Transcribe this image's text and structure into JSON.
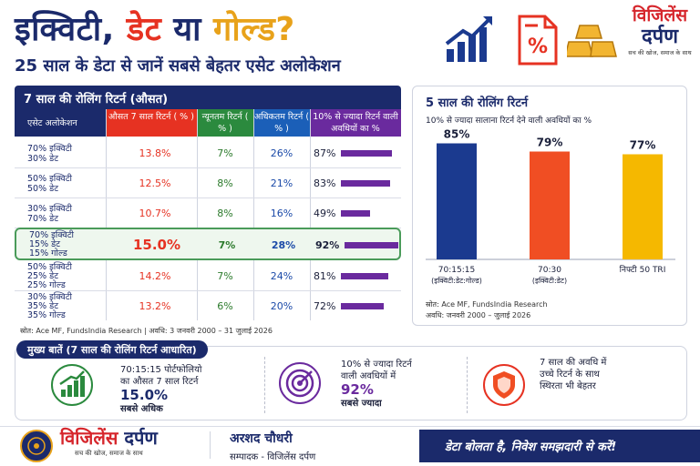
{
  "header": {
    "title_part1": "इक्विटी,",
    "title_part2": "डेट",
    "title_part3": "या",
    "title_part4": "गोल्ड?",
    "subtitle": "25 साल के डेटा से जानें सबसे बेहतर एसेट अलोकेशन",
    "icons": [
      "growth-chart-icon",
      "percent-document-icon",
      "gold-bars-icon"
    ],
    "brand_name_line1": "विजिलेंस",
    "brand_name_line2": "दर्पण",
    "brand_tagline": "सच की खोज, समाज के साथ"
  },
  "colors": {
    "navy": "#1b2a6b",
    "red": "#e63222",
    "gold": "#e8a21a",
    "green": "#2b7a2b",
    "purple": "#6a2a9e",
    "chart_bar_1": "#1b3a8f",
    "chart_bar_2": "#f04e23",
    "chart_bar_3": "#f5b800"
  },
  "table": {
    "title": "7 साल की रोलिंग रिटर्न (औसत)",
    "headers": {
      "alloc": "एसेट अलोकेशन",
      "avg": "औसत 7 साल रिटर्न ( % )",
      "min": "न्यूनतम रिटर्न ( % )",
      "max": "अधिकतम रिटर्न ( % )",
      "pct": "10% से ज्यादा रिटर्न वाली अवधियों का %"
    },
    "rows": [
      {
        "alloc1": "70% इक्विटी",
        "alloc2": "30% डेट",
        "alloc3": "",
        "avg": "13.8%",
        "min": "7%",
        "max": "26%",
        "pct": "87%",
        "pct_value": 87
      },
      {
        "alloc1": "50% इक्विटी",
        "alloc2": "50% डेट",
        "alloc3": "",
        "avg": "12.5%",
        "min": "8%",
        "max": "21%",
        "pct": "83%",
        "pct_value": 83
      },
      {
        "alloc1": "30% इक्विटी",
        "alloc2": "70% डेट",
        "alloc3": "",
        "avg": "10.7%",
        "min": "8%",
        "max": "16%",
        "pct": "49%",
        "pct_value": 49
      },
      {
        "alloc1": "70% इक्विटी",
        "alloc2": "15% डेट",
        "alloc3": "15% गोल्ड",
        "avg": "15.0%",
        "min": "7%",
        "max": "28%",
        "pct": "92%",
        "pct_value": 92
      },
      {
        "alloc1": "50% इक्विटी",
        "alloc2": "25% डेट",
        "alloc3": "25% गोल्ड",
        "avg": "14.2%",
        "min": "7%",
        "max": "24%",
        "pct": "81%",
        "pct_value": 81
      },
      {
        "alloc1": "30% इक्विटी",
        "alloc2": "35% डेट",
        "alloc3": "35% गोल्ड",
        "avg": "13.2%",
        "min": "6%",
        "max": "20%",
        "pct": "72%",
        "pct_value": 72
      }
    ],
    "source": "स्रोत: Ace MF, FundsIndia Research  |  अवधि: 3 जनवरी 2000 – 31 जुलाई 2026"
  },
  "chart_data": {
    "type": "bar",
    "title": "5 साल की रोलिंग रिटर्न",
    "subtitle": "10% से ज्यादा सालाना रिटर्न देने वाली अवधियों का %",
    "categories": [
      "70:15:15 (इक्विटी:डेट:गोल्ड)",
      "70:30 (इक्विटी:डेट)",
      "निफ्टी 50 TRI"
    ],
    "category_line1": [
      "70:15:15",
      "70:30",
      "निफ्टी 50 TRI"
    ],
    "category_line2": [
      "(इक्विटी:डेट:गोल्ड)",
      "(इक्विटी:डेट)",
      ""
    ],
    "values": [
      85,
      79,
      77
    ],
    "value_labels": [
      "85%",
      "79%",
      "77%"
    ],
    "ylim": [
      0,
      100
    ],
    "xlabel": "",
    "ylabel": "",
    "grid": false,
    "source_line1": "स्रोत: Ace MF, FundsIndia Research",
    "source_line2": "अवधि: जनवरी 2000 – जुलाई 2026"
  },
  "takeaways": {
    "title": "मुख्य बातें (7 साल की रोलिंग रिटर्न आधारित)",
    "items": [
      {
        "icon": "growth-bars-icon",
        "line1": "70:15:15 पोर्टफोलियो",
        "line2": "का औसत 7 साल रिटर्न",
        "big": "15.0%",
        "line3": "सबसे अधिक"
      },
      {
        "icon": "target-icon",
        "line1": "10% से ज्यादा रिटर्न",
        "line2": "वाली अवधियों में",
        "big": "92%",
        "line3": "सबसे ज्यादा"
      },
      {
        "icon": "shield-icon",
        "line1": "7 साल की अवधि में",
        "line2": "उच्चे रिटर्न के साथ",
        "big": "",
        "line3": "स्थिरता भी बेहतर"
      }
    ]
  },
  "footer": {
    "brand_part1": "विजिलेंस",
    "brand_part2": "दर्पण",
    "brand_tagline": "सच की खोज, समाज के साथ",
    "editor_name": "अरशद चौधरी",
    "editor_role": "सम्पादक - विजिलेंस दर्पण",
    "tagline": "डेटा बोलता है, निवेश समझदारी से करें!"
  }
}
